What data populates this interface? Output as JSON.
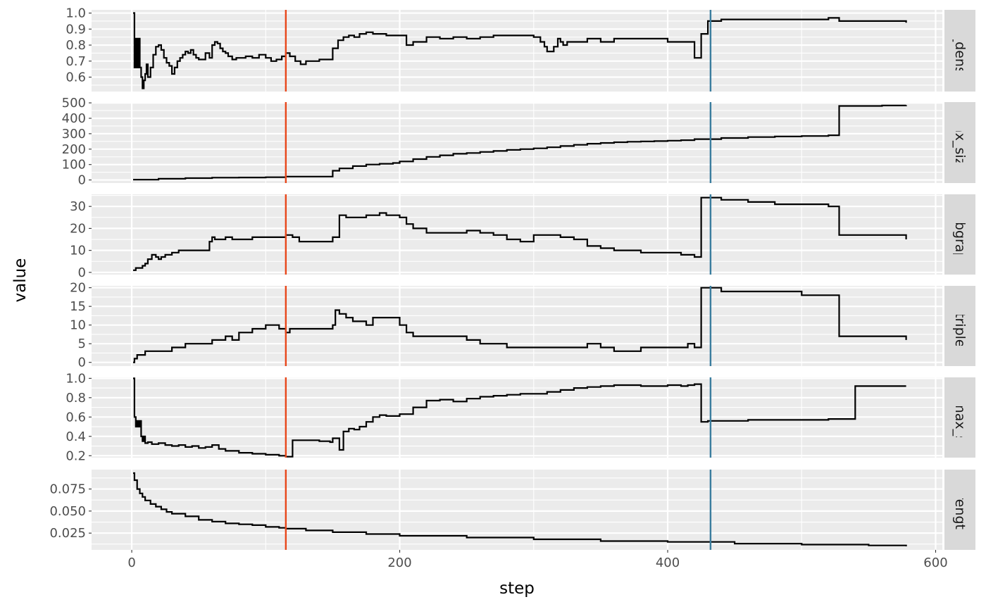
{
  "chart_data": {
    "type": "line",
    "layout": "facet-rows",
    "xlabel": "step",
    "ylabel": "value",
    "xlim": [
      -30,
      605
    ],
    "x_ticks": [
      0,
      200,
      400,
      600
    ],
    "x_tick_labels": [
      "0",
      "200",
      "400",
      "600"
    ],
    "vlines": [
      {
        "x": 115,
        "color": "#E8471B"
      },
      {
        "x": 432,
        "color": "#3A7D9E"
      }
    ],
    "panels": [
      {
        "strip_label": "avg_density",
        "strip_label_visible": "vg_densit",
        "ylim": [
          0.51,
          1.02
        ],
        "y_ticks": [
          0.6,
          0.7,
          0.8,
          0.9,
          1.0
        ],
        "y_tick_labels": [
          "0.6",
          "0.7",
          "0.8",
          "0.9",
          "1.0"
        ],
        "series": {
          "x": [
            1,
            2,
            3,
            4,
            5,
            6,
            7,
            8,
            9,
            10,
            11,
            12,
            14,
            16,
            18,
            20,
            22,
            24,
            26,
            28,
            30,
            32,
            34,
            36,
            38,
            40,
            42,
            44,
            46,
            48,
            50,
            55,
            58,
            60,
            62,
            64,
            66,
            68,
            70,
            72,
            75,
            78,
            80,
            85,
            90,
            95,
            100,
            104,
            108,
            112,
            115,
            118,
            122,
            126,
            130,
            135,
            140,
            148,
            150,
            154,
            158,
            162,
            166,
            170,
            175,
            180,
            185,
            190,
            195,
            200,
            205,
            210,
            220,
            230,
            240,
            250,
            260,
            270,
            280,
            290,
            300,
            305,
            308,
            310,
            315,
            318,
            320,
            322,
            325,
            330,
            340,
            350,
            360,
            370,
            380,
            390,
            400,
            410,
            415,
            420,
            425,
            430,
            440,
            460,
            480,
            500,
            520,
            528,
            540,
            560,
            578
          ],
          "y": [
            1.0,
            0.66,
            0.84,
            0.66,
            0.84,
            0.66,
            0.6,
            0.53,
            0.58,
            0.62,
            0.68,
            0.6,
            0.66,
            0.74,
            0.79,
            0.8,
            0.77,
            0.72,
            0.69,
            0.67,
            0.62,
            0.66,
            0.7,
            0.72,
            0.74,
            0.76,
            0.75,
            0.77,
            0.74,
            0.72,
            0.71,
            0.75,
            0.72,
            0.8,
            0.82,
            0.81,
            0.78,
            0.76,
            0.75,
            0.73,
            0.71,
            0.72,
            0.72,
            0.73,
            0.72,
            0.74,
            0.72,
            0.7,
            0.71,
            0.73,
            0.75,
            0.73,
            0.7,
            0.68,
            0.7,
            0.7,
            0.71,
            0.71,
            0.78,
            0.83,
            0.85,
            0.86,
            0.85,
            0.87,
            0.88,
            0.87,
            0.87,
            0.86,
            0.86,
            0.86,
            0.8,
            0.82,
            0.85,
            0.84,
            0.85,
            0.84,
            0.85,
            0.86,
            0.86,
            0.86,
            0.85,
            0.82,
            0.79,
            0.76,
            0.79,
            0.84,
            0.82,
            0.8,
            0.82,
            0.82,
            0.84,
            0.82,
            0.84,
            0.84,
            0.84,
            0.84,
            0.82,
            0.82,
            0.82,
            0.72,
            0.87,
            0.95,
            0.96,
            0.96,
            0.96,
            0.96,
            0.97,
            0.95,
            0.95,
            0.95,
            0.94
          ]
        }
      },
      {
        "strip_label": "max_size",
        "strip_label_visible": "max_size",
        "ylim": [
          -20,
          505
        ],
        "y_ticks": [
          0,
          100,
          200,
          300,
          400,
          500
        ],
        "y_tick_labels": [
          "0",
          "100",
          "200",
          "300",
          "400",
          "500"
        ],
        "series": {
          "x": [
            1,
            20,
            40,
            60,
            80,
            100,
            115,
            150,
            155,
            165,
            175,
            185,
            195,
            200,
            210,
            220,
            230,
            240,
            250,
            260,
            270,
            280,
            290,
            300,
            310,
            320,
            330,
            340,
            350,
            360,
            370,
            380,
            390,
            400,
            410,
            420,
            440,
            460,
            480,
            500,
            520,
            528,
            540,
            560,
            578
          ],
          "y": [
            2,
            8,
            12,
            15,
            16,
            18,
            22,
            60,
            75,
            90,
            100,
            105,
            110,
            120,
            135,
            150,
            160,
            170,
            175,
            182,
            188,
            195,
            200,
            205,
            212,
            220,
            228,
            235,
            240,
            245,
            248,
            250,
            252,
            255,
            258,
            265,
            272,
            278,
            282,
            285,
            290,
            480,
            480,
            483,
            485
          ]
        }
      },
      {
        "strip_label": "n_subgraphs",
        "strip_label_visible": "_subgraph",
        "ylim": [
          -1,
          35.5
        ],
        "y_ticks": [
          0,
          10,
          20,
          30
        ],
        "y_tick_labels": [
          "0",
          "10",
          "20",
          "30"
        ],
        "series": {
          "x": [
            1,
            3,
            6,
            8,
            10,
            12,
            15,
            18,
            20,
            22,
            25,
            30,
            35,
            40,
            50,
            58,
            60,
            62,
            65,
            70,
            75,
            80,
            90,
            100,
            110,
            115,
            120,
            125,
            140,
            150,
            155,
            160,
            170,
            175,
            180,
            185,
            190,
            200,
            205,
            210,
            220,
            230,
            240,
            250,
            260,
            270,
            280,
            290,
            300,
            310,
            320,
            330,
            340,
            350,
            360,
            380,
            400,
            410,
            415,
            420,
            425,
            430,
            440,
            450,
            460,
            480,
            500,
            520,
            528,
            540,
            560,
            578
          ],
          "y": [
            1,
            2,
            2,
            3,
            4,
            6,
            8,
            7,
            6,
            7,
            8,
            9,
            10,
            10,
            10,
            14,
            16,
            15,
            15,
            16,
            15,
            15,
            16,
            16,
            16,
            17,
            16,
            14,
            14,
            16,
            26,
            25,
            25,
            26,
            26,
            27,
            26,
            25,
            22,
            20,
            18,
            18,
            18,
            19,
            18,
            17,
            15,
            14,
            17,
            17,
            16,
            15,
            12,
            11,
            10,
            9,
            9,
            8,
            8,
            7,
            34,
            34,
            33,
            33,
            32,
            31,
            31,
            30,
            17,
            17,
            17,
            15
          ]
        }
      },
      {
        "strip_label": "n_triples",
        "strip_label_visible": "n_triples",
        "ylim": [
          -1,
          20.5
        ],
        "y_ticks": [
          0,
          5,
          10,
          15,
          20
        ],
        "y_tick_labels": [
          "0",
          "5",
          "10",
          "15",
          "20"
        ],
        "series": {
          "x": [
            1,
            2,
            4,
            6,
            10,
            20,
            30,
            40,
            50,
            60,
            70,
            75,
            80,
            90,
            100,
            105,
            110,
            115,
            118,
            125,
            140,
            150,
            152,
            155,
            160,
            165,
            170,
            175,
            180,
            185,
            190,
            195,
            200,
            205,
            210,
            220,
            240,
            250,
            260,
            270,
            280,
            290,
            300,
            320,
            340,
            350,
            360,
            380,
            400,
            410,
            415,
            420,
            425,
            430,
            440,
            460,
            480,
            500,
            520,
            528,
            540,
            560,
            578
          ],
          "y": [
            0,
            1,
            2,
            2,
            3,
            3,
            4,
            5,
            5,
            6,
            7,
            6,
            8,
            9,
            10,
            10,
            9,
            8,
            9,
            9,
            9,
            10,
            14,
            13,
            12,
            11,
            11,
            10,
            12,
            12,
            12,
            12,
            10,
            8,
            7,
            7,
            7,
            6,
            5,
            5,
            4,
            4,
            4,
            4,
            5,
            4,
            3,
            4,
            4,
            4,
            5,
            4,
            20,
            20,
            19,
            19,
            19,
            18,
            18,
            7,
            7,
            7,
            6
          ]
        }
      },
      {
        "strip_label": "rel_max_size",
        "strip_label_visible": "el_max_siz",
        "ylim": [
          0.18,
          1.01
        ],
        "y_ticks": [
          0.2,
          0.4,
          0.6,
          0.8,
          1.0
        ],
        "y_tick_labels": [
          "0.2",
          "0.4",
          "0.6",
          "0.8",
          "1.0"
        ],
        "series": {
          "x": [
            1,
            2,
            3,
            4,
            5,
            6,
            7,
            8,
            9,
            10,
            12,
            15,
            20,
            25,
            30,
            35,
            40,
            45,
            50,
            55,
            60,
            65,
            70,
            80,
            90,
            100,
            110,
            115,
            120,
            130,
            140,
            148,
            150,
            155,
            158,
            162,
            166,
            170,
            175,
            180,
            185,
            190,
            200,
            210,
            220,
            230,
            240,
            250,
            260,
            270,
            280,
            290,
            300,
            310,
            320,
            330,
            340,
            350,
            360,
            370,
            380,
            390,
            400,
            410,
            415,
            420,
            425,
            430,
            440,
            460,
            480,
            500,
            520,
            528,
            540,
            560,
            578
          ],
          "y": [
            1.0,
            0.6,
            0.5,
            0.56,
            0.5,
            0.56,
            0.4,
            0.35,
            0.4,
            0.33,
            0.34,
            0.32,
            0.33,
            0.31,
            0.3,
            0.31,
            0.29,
            0.3,
            0.28,
            0.29,
            0.31,
            0.27,
            0.25,
            0.23,
            0.22,
            0.21,
            0.2,
            0.19,
            0.36,
            0.36,
            0.35,
            0.34,
            0.38,
            0.26,
            0.45,
            0.48,
            0.47,
            0.5,
            0.55,
            0.6,
            0.62,
            0.61,
            0.63,
            0.7,
            0.77,
            0.78,
            0.76,
            0.79,
            0.81,
            0.82,
            0.83,
            0.84,
            0.84,
            0.86,
            0.88,
            0.9,
            0.91,
            0.92,
            0.93,
            0.93,
            0.92,
            0.92,
            0.93,
            0.92,
            0.93,
            0.94,
            0.55,
            0.56,
            0.56,
            0.57,
            0.57,
            0.57,
            0.58,
            0.58,
            0.92,
            0.92,
            0.92
          ]
        }
      },
      {
        "strip_label": "strength",
        "strip_label_visible": "strength",
        "ylim": [
          0.006,
          0.097
        ],
        "y_ticks": [
          0.025,
          0.05,
          0.075
        ],
        "y_tick_labels": [
          "0.025",
          "0.050",
          "0.075"
        ],
        "series": {
          "x": [
            1,
            2,
            4,
            6,
            8,
            10,
            14,
            18,
            22,
            26,
            30,
            40,
            50,
            60,
            70,
            80,
            90,
            100,
            110,
            115,
            130,
            150,
            175,
            200,
            250,
            300,
            350,
            400,
            450,
            500,
            550,
            578
          ],
          "y": [
            0.093,
            0.085,
            0.075,
            0.07,
            0.066,
            0.062,
            0.058,
            0.055,
            0.052,
            0.049,
            0.047,
            0.044,
            0.04,
            0.038,
            0.036,
            0.035,
            0.034,
            0.032,
            0.031,
            0.03,
            0.028,
            0.026,
            0.024,
            0.022,
            0.02,
            0.018,
            0.016,
            0.015,
            0.013,
            0.012,
            0.011,
            0.01
          ]
        }
      }
    ]
  }
}
